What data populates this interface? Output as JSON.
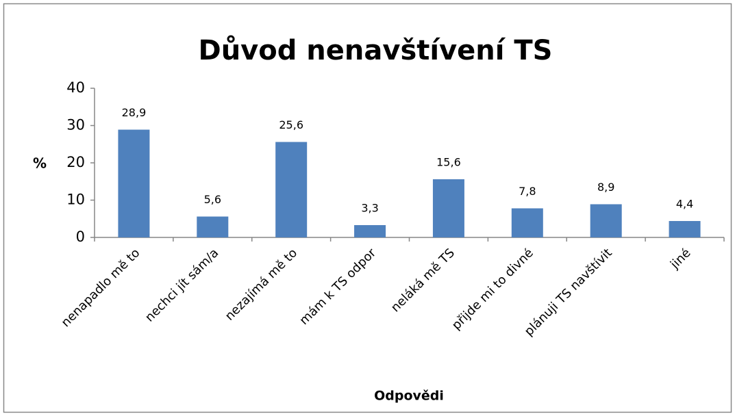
{
  "chart_data": {
    "type": "bar",
    "title": "Důvod nenavštívení TS",
    "x_label": "Odpovědi",
    "y_label": "%",
    "categories": [
      "nenapadlo mě to",
      "nechci jít sám/a",
      "nezajímá mě to",
      "mám k TS odpor",
      "neláká mě TS",
      "přijde mi to divné",
      "plánuji TS navštívit",
      "jiné"
    ],
    "values": [
      28.9,
      5.6,
      25.6,
      3.3,
      15.6,
      7.8,
      8.9,
      4.4
    ],
    "value_labels": [
      "28,9",
      "5,6",
      "25,6",
      "3,3",
      "15,6",
      "7,8",
      "8,9",
      "4,4"
    ],
    "color": "#4f81bd",
    "ylim": [
      0,
      40
    ],
    "yticks": [
      0,
      10,
      20,
      30,
      40
    ],
    "grid": false
  }
}
